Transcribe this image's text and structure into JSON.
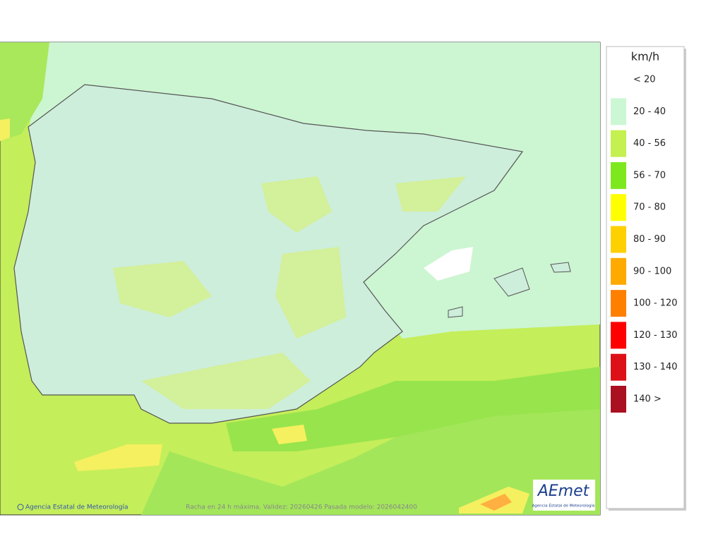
{
  "legend": {
    "unit": "km/h",
    "entries": [
      {
        "label": "< 20",
        "color": null
      },
      {
        "label": "20 - 40",
        "color": "#ccf7d4"
      },
      {
        "label": "40 - 56",
        "color": "#c4f050"
      },
      {
        "label": "56 - 70",
        "color": "#7ee81e"
      },
      {
        "label": "70 - 80",
        "color": "#ffff00"
      },
      {
        "label": "80 - 90",
        "color": "#ffd000"
      },
      {
        "label": "90 - 100",
        "color": "#ffaa00"
      },
      {
        "label": "100 - 120",
        "color": "#ff8000"
      },
      {
        "label": "120 - 130",
        "color": "#ff0000"
      },
      {
        "label": "130 - 140",
        "color": "#dd1018"
      },
      {
        "label": "140 >",
        "color": "#aa1020"
      }
    ]
  },
  "footer": {
    "credit": "Agencia Estatal de Meteorología",
    "caption": "Racha en 24 h máxima. Validez: 20260426 Pasada modelo: 2026042400"
  },
  "logo": {
    "name": "AEmet",
    "subtitle": "Agencia Estatal de Meteorología"
  }
}
